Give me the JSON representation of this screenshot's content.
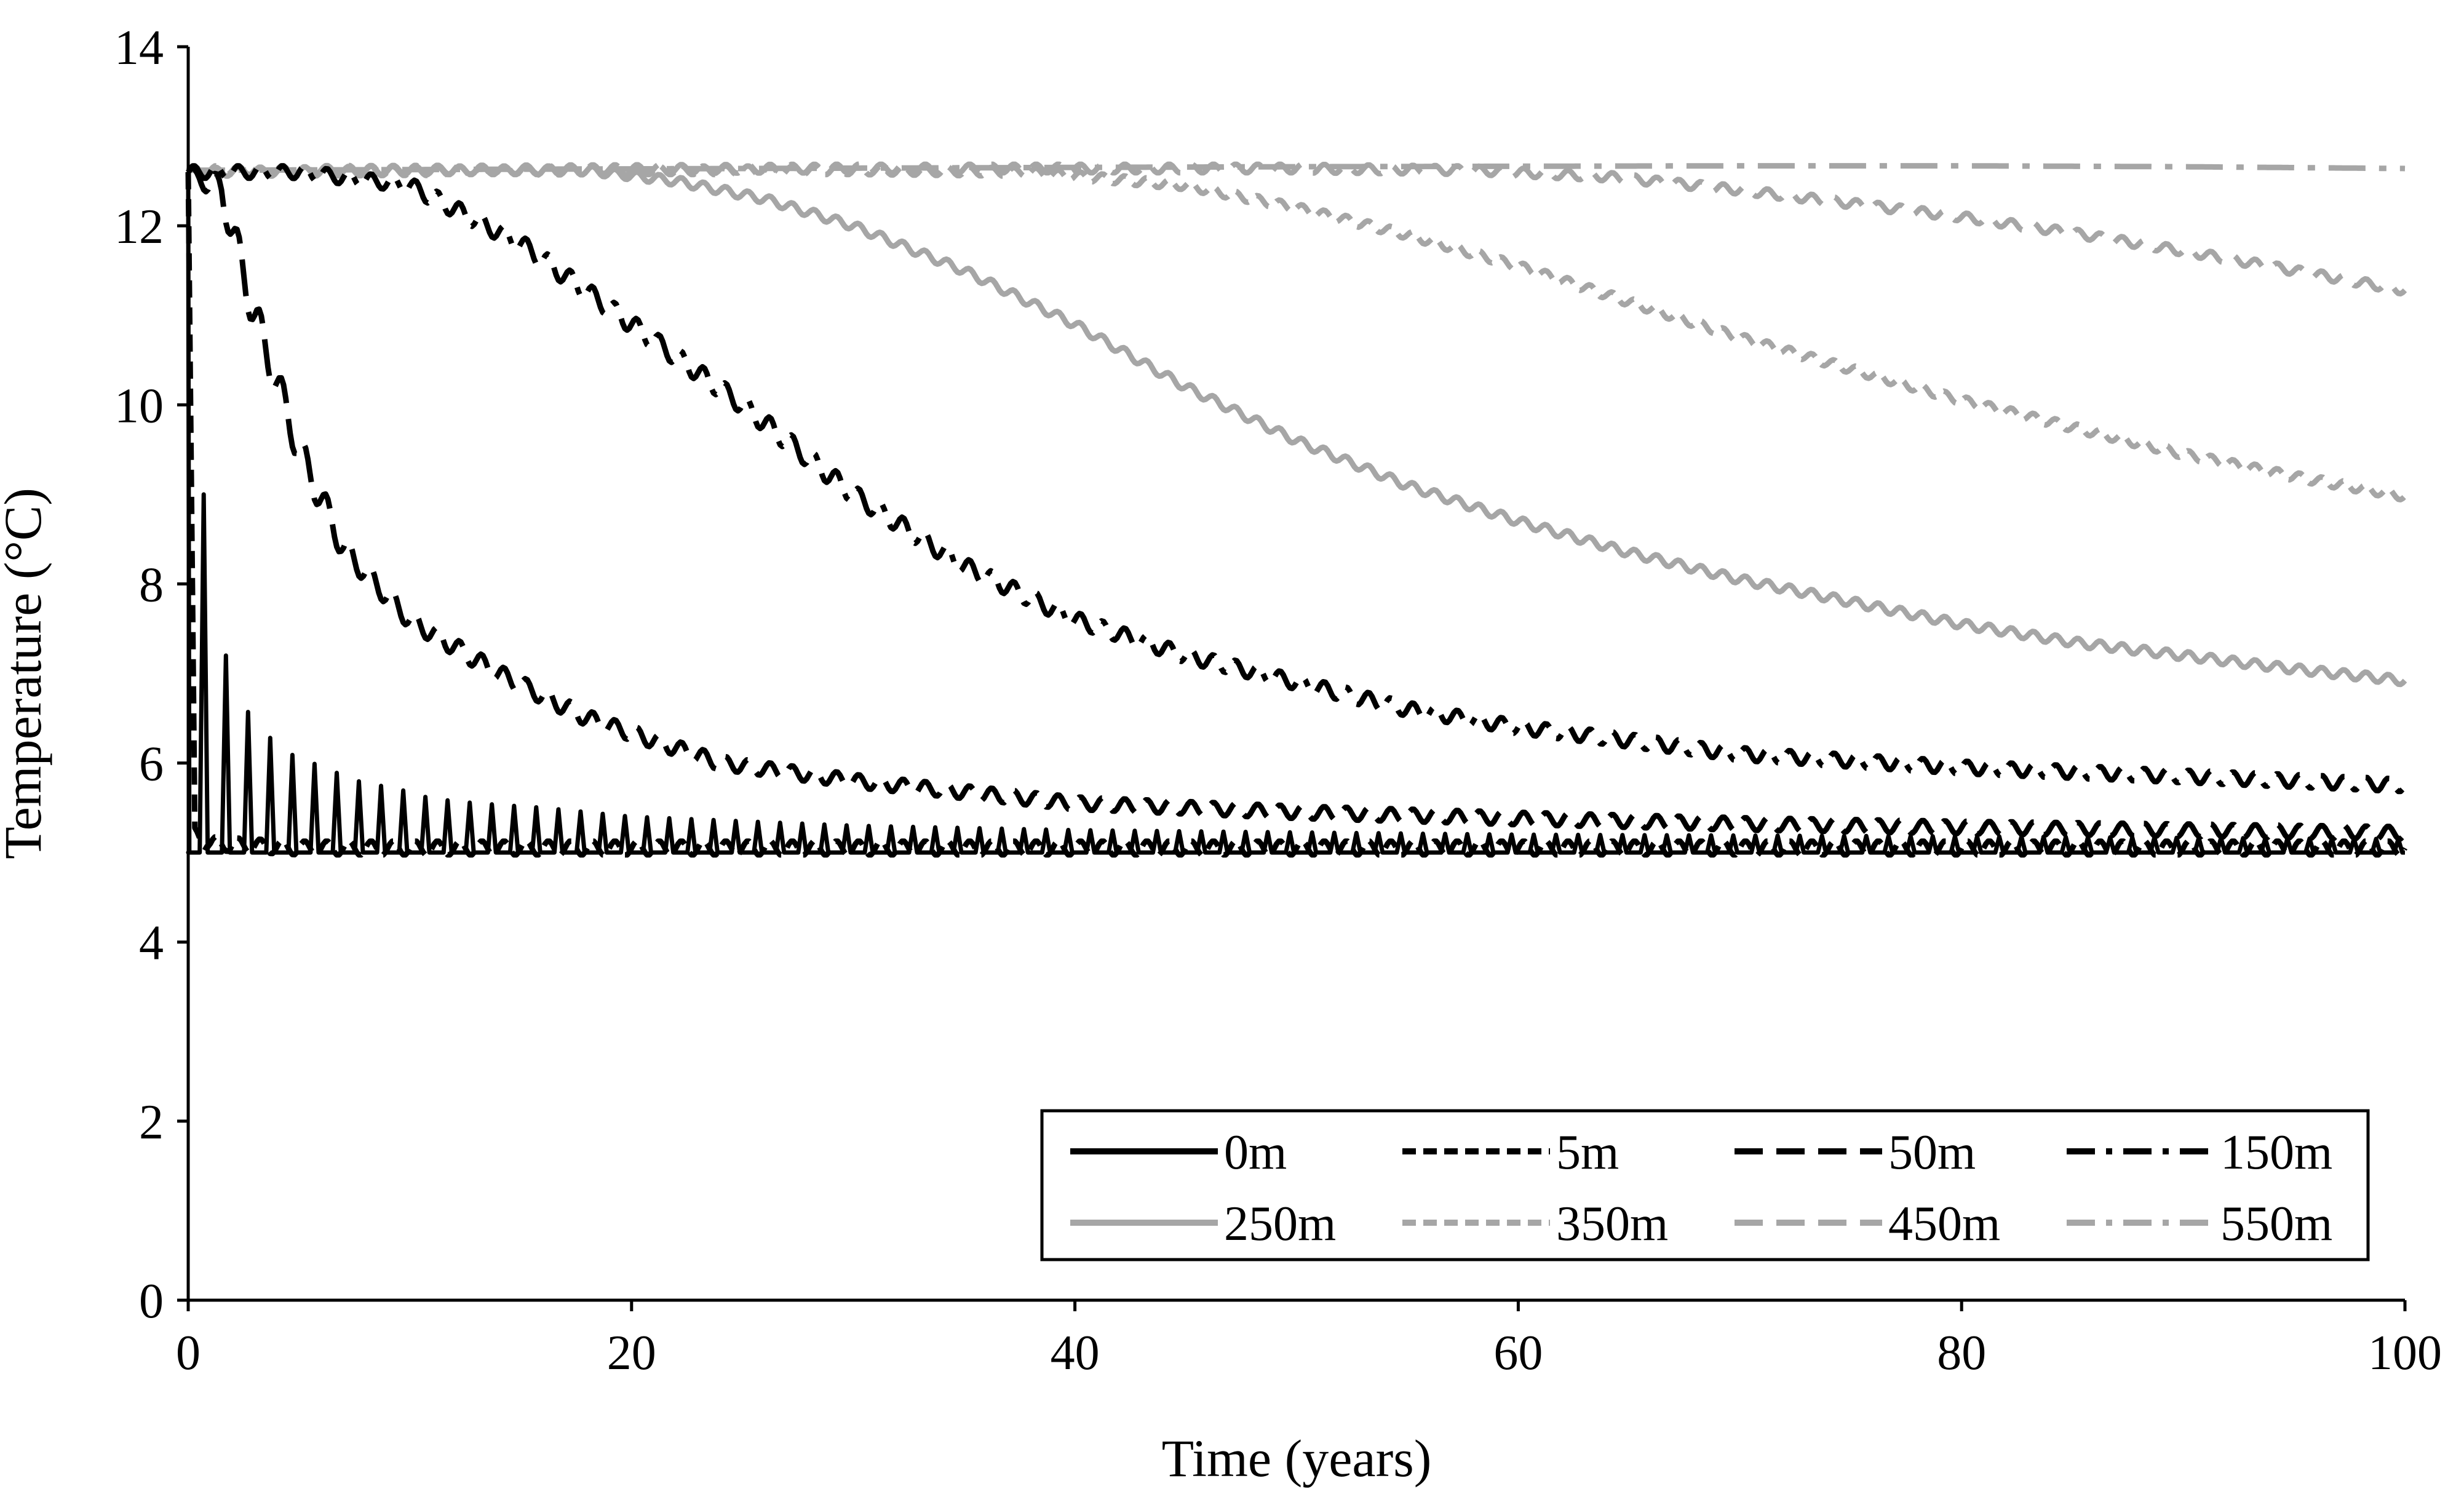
{
  "chart_data": {
    "type": "line",
    "title": "",
    "xlabel": "Time (years)",
    "ylabel": "Temperature (°C)",
    "xlim": [
      0,
      100
    ],
    "ylim": [
      0,
      14
    ],
    "xticks": [
      0,
      20,
      40,
      60,
      80,
      100
    ],
    "yticks": [
      0,
      2,
      4,
      6,
      8,
      10,
      12,
      14
    ],
    "grid": false,
    "legend_position": "bottom-right",
    "series": [
      {
        "name": "0m",
        "color": "#000000",
        "dash": "solid",
        "oscillation": "spiky",
        "x": [
          0,
          0.3,
          5,
          20,
          50,
          100
        ],
        "y": [
          5.0,
          5.0,
          5.0,
          5.0,
          5.0,
          5.0
        ],
        "peaks_x": [
          0.7,
          1.7,
          2.6,
          3.6,
          4.6,
          5.6,
          6.6,
          7.6,
          8.6,
          9.6,
          11,
          13,
          16,
          20,
          30,
          40,
          60,
          80,
          100
        ],
        "peaks_y": [
          9.0,
          7.2,
          6.6,
          6.3,
          6.1,
          6.0,
          5.9,
          5.8,
          5.75,
          5.7,
          5.6,
          5.55,
          5.5,
          5.4,
          5.3,
          5.25,
          5.2,
          5.18,
          5.15
        ]
      },
      {
        "name": "5m",
        "color": "#000000",
        "dash": "short-dash",
        "oscillation": "spiky-small",
        "x": [
          0,
          0.3,
          1,
          5,
          20,
          50,
          100
        ],
        "y": [
          12.6,
          5.2,
          5.1,
          5.05,
          5.05,
          5.05,
          5.05
        ]
      },
      {
        "name": "50m",
        "color": "#000000",
        "dash": "long-dash",
        "oscillation": "wavy",
        "x": [
          0,
          1.5,
          3,
          5,
          7,
          10,
          14,
          18,
          24,
          30,
          40,
          50,
          60,
          70,
          80,
          90,
          100
        ],
        "y": [
          12.6,
          12.4,
          11.0,
          9.5,
          8.4,
          7.6,
          7.0,
          6.5,
          6.0,
          5.8,
          5.55,
          5.45,
          5.38,
          5.32,
          5.28,
          5.25,
          5.22
        ]
      },
      {
        "name": "150m",
        "color": "#000000",
        "dash": "dash-dot",
        "oscillation": "wavy",
        "x": [
          0,
          5,
          10,
          15,
          20,
          25,
          30,
          35,
          40,
          45,
          50,
          55,
          60,
          65,
          70,
          80,
          90,
          100
        ],
        "y": [
          12.6,
          12.6,
          12.45,
          11.8,
          10.9,
          10.0,
          9.0,
          8.2,
          7.6,
          7.2,
          6.9,
          6.6,
          6.4,
          6.25,
          6.1,
          5.95,
          5.85,
          5.75
        ]
      },
      {
        "name": "250m",
        "color": "#a6a6a6",
        "dash": "solid",
        "oscillation": "wavy-small",
        "x": [
          0,
          10,
          18,
          22,
          26,
          30,
          35,
          40,
          45,
          50,
          55,
          60,
          65,
          70,
          75,
          80,
          85,
          90,
          95,
          100
        ],
        "y": [
          12.6,
          12.62,
          12.62,
          12.5,
          12.3,
          12.0,
          11.5,
          10.9,
          10.2,
          9.6,
          9.1,
          8.7,
          8.35,
          8.05,
          7.8,
          7.55,
          7.35,
          7.2,
          7.05,
          6.92
        ]
      },
      {
        "name": "350m",
        "color": "#a6a6a6",
        "dash": "short-dash",
        "oscillation": "wavy-small",
        "x": [
          0,
          20,
          30,
          38,
          45,
          50,
          55,
          60,
          65,
          70,
          75,
          80,
          85,
          90,
          95,
          100
        ],
        "y": [
          12.6,
          12.62,
          12.62,
          12.6,
          12.45,
          12.2,
          11.9,
          11.55,
          11.15,
          10.75,
          10.4,
          10.05,
          9.75,
          9.45,
          9.2,
          8.98
        ]
      },
      {
        "name": "450m",
        "color": "#a6a6a6",
        "dash": "long-dash",
        "oscillation": "wavy-small",
        "x": [
          0,
          30,
          50,
          58,
          64,
          70,
          75,
          80,
          85,
          90,
          95,
          100
        ],
        "y": [
          12.62,
          12.64,
          12.64,
          12.62,
          12.55,
          12.4,
          12.25,
          12.1,
          11.92,
          11.72,
          11.5,
          11.28
        ]
      },
      {
        "name": "550m",
        "color": "#a6a6a6",
        "dash": "dash-dot",
        "oscillation": "none",
        "x": [
          0,
          50,
          70,
          80,
          90,
          100
        ],
        "y": [
          12.62,
          12.66,
          12.67,
          12.67,
          12.66,
          12.64
        ]
      }
    ]
  }
}
